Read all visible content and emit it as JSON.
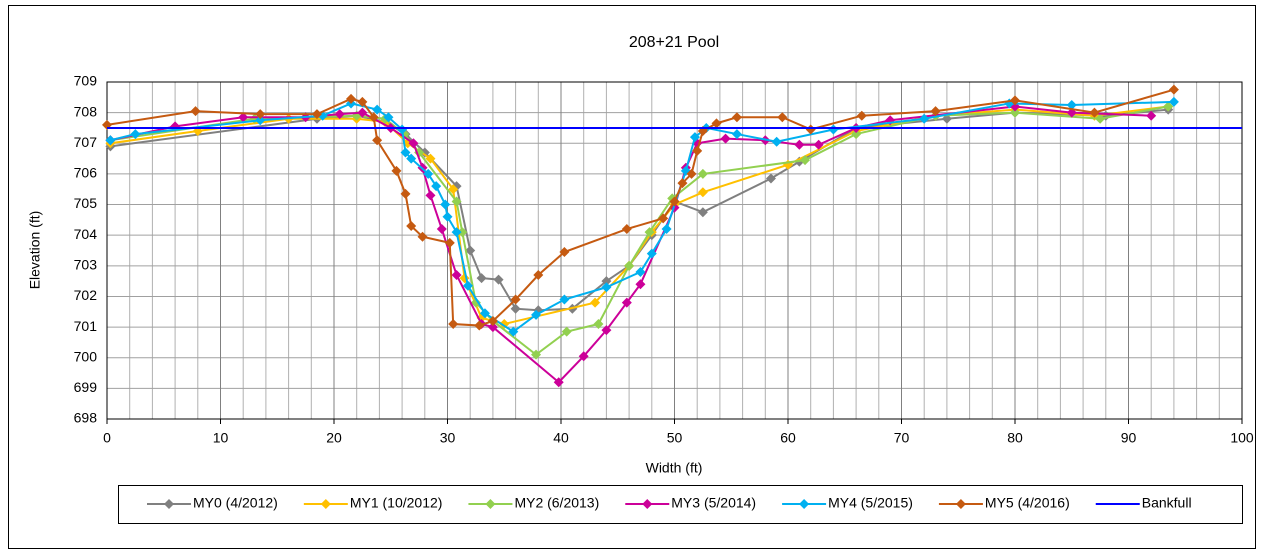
{
  "chart_data": {
    "type": "line",
    "title": "208+21 Pool",
    "xlabel": "Width (ft)",
    "ylabel": "Elevation (ft)",
    "xlim": [
      0,
      100
    ],
    "xticks": [
      0,
      10,
      20,
      30,
      40,
      50,
      60,
      70,
      80,
      90,
      100
    ],
    "x_minor_ticks": [
      2,
      4,
      6,
      8,
      12,
      14,
      16,
      18,
      22,
      24,
      26,
      28,
      32,
      34,
      36,
      38,
      42,
      44,
      46,
      48,
      52,
      54,
      56,
      58,
      62,
      64,
      66,
      68,
      72,
      74,
      76,
      78,
      82,
      84,
      86,
      88,
      92,
      94,
      96,
      98
    ],
    "ylim": [
      698,
      709
    ],
    "yticks": [
      698,
      699,
      700,
      701,
      702,
      703,
      704,
      705,
      706,
      707,
      708,
      709
    ],
    "grid": true,
    "legend": "bottom",
    "series": [
      {
        "name": "MY0 (4/2012)",
        "color": "#808080",
        "marker": "diamond",
        "x": [
          0.3,
          18.5,
          22,
          24.5,
          26.3,
          28,
          30.8,
          32,
          33,
          34.5,
          36,
          38,
          41,
          44,
          46,
          48,
          50,
          52.5,
          58.5,
          61,
          66,
          74,
          80,
          88,
          93.5
        ],
        "values": [
          706.9,
          707.8,
          707.9,
          707.7,
          707.3,
          706.7,
          705.6,
          703.5,
          702.6,
          702.55,
          701.6,
          701.55,
          701.6,
          702.5,
          703,
          704,
          705.1,
          704.75,
          705.85,
          706.4,
          707.5,
          707.8,
          708.0,
          707.9,
          708.1
        ]
      },
      {
        "name": "MY1 (10/2012)",
        "color": "#ffc000",
        "marker": "diamond",
        "x": [
          0.3,
          8,
          16,
          22,
          24.5,
          26.5,
          28.5,
          30.5,
          31.5,
          33,
          35,
          43,
          46,
          48,
          50,
          52.5,
          60,
          66,
          73,
          80,
          87,
          93.5
        ],
        "values": [
          707.0,
          707.4,
          707.8,
          707.8,
          707.7,
          707.0,
          706.5,
          705.5,
          702.6,
          701.3,
          701.1,
          701.8,
          703,
          704.1,
          705,
          705.4,
          706.3,
          707.4,
          707.9,
          708.1,
          707.9,
          708.2
        ]
      },
      {
        "name": "MY2 (6/2013)",
        "color": "#92d050",
        "marker": "diamond",
        "x": [
          0.3,
          13,
          22,
          24.5,
          26.2,
          27.5,
          30.8,
          31.3,
          32.5,
          34,
          37.8,
          40.5,
          43.3,
          46,
          47.8,
          49.8,
          52.5,
          61.5,
          66,
          73,
          80,
          87.5,
          93.5
        ],
        "values": [
          707.1,
          707.8,
          707.9,
          707.8,
          707.3,
          706.7,
          705.1,
          704.1,
          701.8,
          701.2,
          700.1,
          700.85,
          701.1,
          703,
          704.1,
          705.2,
          706,
          706.45,
          707.3,
          707.9,
          708.0,
          707.8,
          708.2
        ]
      },
      {
        "name": "MY3 (5/2014)",
        "color": "#cc0099",
        "marker": "diamond",
        "x": [
          0.3,
          6,
          12,
          17.5,
          20.5,
          22.5,
          25,
          27,
          27.8,
          28.5,
          29.5,
          30.8,
          33,
          34,
          39.8,
          42,
          44,
          45.8,
          47,
          50,
          51,
          52,
          54.5,
          58,
          61,
          62.7,
          66,
          69,
          80,
          85,
          92
        ],
        "values": [
          707.1,
          707.55,
          707.85,
          707.85,
          707.95,
          708.0,
          707.5,
          707.0,
          706.2,
          705.3,
          704.2,
          702.7,
          701.1,
          701.0,
          699.2,
          700.05,
          700.9,
          701.8,
          702.4,
          704.9,
          706.2,
          707.0,
          707.15,
          707.1,
          706.95,
          706.95,
          707.5,
          707.75,
          708.2,
          708.0,
          707.9
        ]
      },
      {
        "name": "MY4 (5/2015)",
        "color": "#00b0f0",
        "marker": "diamond",
        "x": [
          0.3,
          2.5,
          13.5,
          19,
          21.5,
          23.8,
          24.8,
          26,
          26.3,
          26.8,
          28.3,
          29,
          29.8,
          30,
          30.8,
          31.8,
          33.3,
          35.8,
          37.8,
          40.3,
          44,
          47,
          48,
          49.3,
          51,
          51.8,
          52.8,
          55.5,
          59,
          64,
          72,
          79.5,
          85,
          94
        ],
        "values": [
          707.1,
          707.3,
          707.75,
          707.9,
          708.3,
          708.1,
          707.85,
          707.45,
          706.7,
          706.5,
          706.0,
          705.6,
          705.0,
          704.6,
          704.1,
          702.35,
          701.45,
          700.85,
          701.4,
          701.9,
          702.3,
          702.8,
          703.4,
          704.2,
          706.1,
          707.2,
          707.5,
          707.3,
          707.05,
          707.45,
          707.8,
          708.3,
          708.25,
          708.35
        ]
      },
      {
        "name": "MY5 (4/2016)",
        "color": "#c55a11",
        "marker": "diamond",
        "x": [
          0,
          7.8,
          13.5,
          18.5,
          21.5,
          22.5,
          23.5,
          23.8,
          25.5,
          26.3,
          26.8,
          27.8,
          30.2,
          30.5,
          32.8,
          34,
          36,
          38,
          40.3,
          45.8,
          49,
          50,
          50.7,
          51.5,
          52,
          52.5,
          53.7,
          55.5,
          59.5,
          62,
          66.5,
          73,
          80,
          87,
          94
        ],
        "values": [
          707.6,
          708.05,
          707.95,
          707.95,
          708.45,
          708.35,
          707.85,
          707.1,
          706.1,
          705.35,
          704.3,
          703.95,
          703.75,
          701.1,
          701.05,
          701.2,
          701.9,
          702.7,
          703.45,
          704.2,
          704.55,
          705.1,
          705.7,
          706.0,
          706.75,
          707.4,
          707.65,
          707.85,
          707.85,
          707.45,
          707.9,
          708.05,
          708.4,
          708.0,
          708.75
        ]
      },
      {
        "name": "Bankfull",
        "color": "#0000ff",
        "marker": "none",
        "x": [
          0,
          100
        ],
        "values": [
          707.5,
          707.5
        ]
      }
    ]
  }
}
